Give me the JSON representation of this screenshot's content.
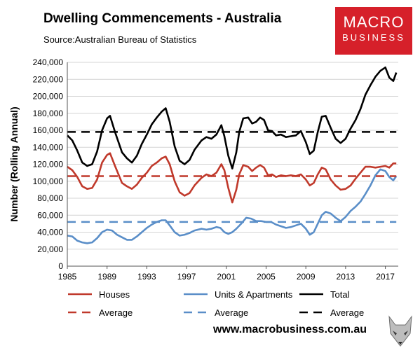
{
  "header": {
    "title": "Dwelling Commencements - Australia",
    "source": "Source:Australian Bureau of Statistics"
  },
  "logo": {
    "line1": "MACRO",
    "line2": "BUSINESS",
    "color": "#d6202a"
  },
  "footer": {
    "url": "www.macrobusiness.com.au"
  },
  "chart_data": {
    "type": "line",
    "title": "Dwelling Commencements - Australia",
    "xlabel": "",
    "ylabel": "Number (Rolling Annual)",
    "xlim": [
      1985,
      2018.3
    ],
    "ylim": [
      0,
      240000
    ],
    "x_ticks": [
      "1985",
      "1989",
      "1993",
      "1997",
      "2001",
      "2005",
      "2009",
      "2013",
      "2017"
    ],
    "y_ticks": [
      "0",
      "20,000",
      "40,000",
      "60,000",
      "80,000",
      "100,000",
      "120,000",
      "140,000",
      "160,000",
      "180,000",
      "200,000",
      "220,000",
      "240,000"
    ],
    "grid": "horizontal",
    "legend_placement": "bottom",
    "series": [
      {
        "name": "Houses",
        "color": "#c0392b",
        "style": "solid",
        "points": [
          [
            1985.0,
            117000
          ],
          [
            1985.5,
            113000
          ],
          [
            1986.0,
            105000
          ],
          [
            1986.5,
            94000
          ],
          [
            1987.0,
            91000
          ],
          [
            1987.5,
            92000
          ],
          [
            1988.0,
            102000
          ],
          [
            1988.5,
            122000
          ],
          [
            1989.0,
            131000
          ],
          [
            1989.3,
            133000
          ],
          [
            1989.8,
            118000
          ],
          [
            1990.5,
            98000
          ],
          [
            1991.0,
            94000
          ],
          [
            1991.5,
            91000
          ],
          [
            1992.0,
            96000
          ],
          [
            1992.5,
            104000
          ],
          [
            1993.0,
            110000
          ],
          [
            1993.5,
            118000
          ],
          [
            1994.0,
            122000
          ],
          [
            1994.5,
            127000
          ],
          [
            1994.9,
            129000
          ],
          [
            1995.3,
            120000
          ],
          [
            1995.8,
            100000
          ],
          [
            1996.3,
            87000
          ],
          [
            1996.8,
            83000
          ],
          [
            1997.3,
            86000
          ],
          [
            1997.8,
            95000
          ],
          [
            1998.5,
            104000
          ],
          [
            1999.0,
            108000
          ],
          [
            1999.5,
            106000
          ],
          [
            2000.0,
            110000
          ],
          [
            2000.5,
            120000
          ],
          [
            2000.8,
            113000
          ],
          [
            2001.2,
            92000
          ],
          [
            2001.6,
            75000
          ],
          [
            2002.0,
            90000
          ],
          [
            2002.3,
            108000
          ],
          [
            2002.7,
            119000
          ],
          [
            2003.2,
            117000
          ],
          [
            2003.6,
            112000
          ],
          [
            2004.0,
            116000
          ],
          [
            2004.4,
            119000
          ],
          [
            2004.8,
            116000
          ],
          [
            2005.2,
            107000
          ],
          [
            2005.6,
            108000
          ],
          [
            2006.0,
            105000
          ],
          [
            2006.5,
            107000
          ],
          [
            2007.0,
            106000
          ],
          [
            2007.5,
            107000
          ],
          [
            2008.0,
            106000
          ],
          [
            2008.5,
            108000
          ],
          [
            2009.0,
            102000
          ],
          [
            2009.4,
            95000
          ],
          [
            2009.8,
            98000
          ],
          [
            2010.2,
            108000
          ],
          [
            2010.6,
            116000
          ],
          [
            2011.0,
            114000
          ],
          [
            2011.5,
            102000
          ],
          [
            2012.0,
            95000
          ],
          [
            2012.5,
            90000
          ],
          [
            2013.0,
            91000
          ],
          [
            2013.5,
            95000
          ],
          [
            2014.0,
            103000
          ],
          [
            2014.5,
            110000
          ],
          [
            2015.0,
            117000
          ],
          [
            2015.5,
            117000
          ],
          [
            2016.0,
            116000
          ],
          [
            2016.5,
            117000
          ],
          [
            2017.0,
            118000
          ],
          [
            2017.4,
            116000
          ],
          [
            2017.8,
            121000
          ],
          [
            2018.1,
            121000
          ]
        ]
      },
      {
        "name": "Units & Apartments",
        "color": "#5a8ec8",
        "style": "solid",
        "points": [
          [
            1985.0,
            36000
          ],
          [
            1985.5,
            35000
          ],
          [
            1986.0,
            30000
          ],
          [
            1986.5,
            28000
          ],
          [
            1987.0,
            27000
          ],
          [
            1987.5,
            28000
          ],
          [
            1988.0,
            33000
          ],
          [
            1988.5,
            40000
          ],
          [
            1989.0,
            43000
          ],
          [
            1989.5,
            42000
          ],
          [
            1990.0,
            37000
          ],
          [
            1990.5,
            34000
          ],
          [
            1991.0,
            31000
          ],
          [
            1991.5,
            31000
          ],
          [
            1992.0,
            35000
          ],
          [
            1992.5,
            40000
          ],
          [
            1993.0,
            45000
          ],
          [
            1993.5,
            49000
          ],
          [
            1994.0,
            52000
          ],
          [
            1994.5,
            54000
          ],
          [
            1994.9,
            54000
          ],
          [
            1995.3,
            48000
          ],
          [
            1995.8,
            40000
          ],
          [
            1996.3,
            36000
          ],
          [
            1996.8,
            37000
          ],
          [
            1997.3,
            39000
          ],
          [
            1997.8,
            42000
          ],
          [
            1998.5,
            44000
          ],
          [
            1999.0,
            43000
          ],
          [
            1999.5,
            44000
          ],
          [
            2000.0,
            46000
          ],
          [
            2000.4,
            45000
          ],
          [
            2000.8,
            40000
          ],
          [
            2001.2,
            38000
          ],
          [
            2001.6,
            40000
          ],
          [
            2002.0,
            44000
          ],
          [
            2002.5,
            50000
          ],
          [
            2003.0,
            57000
          ],
          [
            2003.5,
            56000
          ],
          [
            2004.0,
            53000
          ],
          [
            2004.5,
            53000
          ],
          [
            2005.0,
            52000
          ],
          [
            2005.5,
            52000
          ],
          [
            2006.0,
            49000
          ],
          [
            2006.5,
            47000
          ],
          [
            2007.0,
            45000
          ],
          [
            2007.5,
            46000
          ],
          [
            2008.0,
            48000
          ],
          [
            2008.5,
            50000
          ],
          [
            2009.0,
            44000
          ],
          [
            2009.4,
            37000
          ],
          [
            2009.8,
            40000
          ],
          [
            2010.2,
            50000
          ],
          [
            2010.6,
            60000
          ],
          [
            2011.0,
            64000
          ],
          [
            2011.5,
            62000
          ],
          [
            2012.0,
            57000
          ],
          [
            2012.5,
            53000
          ],
          [
            2013.0,
            58000
          ],
          [
            2013.5,
            65000
          ],
          [
            2014.0,
            70000
          ],
          [
            2014.5,
            76000
          ],
          [
            2015.0,
            85000
          ],
          [
            2015.5,
            95000
          ],
          [
            2016.0,
            107000
          ],
          [
            2016.5,
            114000
          ],
          [
            2017.0,
            112000
          ],
          [
            2017.4,
            105000
          ],
          [
            2017.8,
            101000
          ],
          [
            2018.1,
            106000
          ]
        ]
      },
      {
        "name": "Total",
        "color": "#000000",
        "style": "solid",
        "points": [
          [
            1985.0,
            154000
          ],
          [
            1985.5,
            148000
          ],
          [
            1986.0,
            136000
          ],
          [
            1986.5,
            122000
          ],
          [
            1987.0,
            118000
          ],
          [
            1987.5,
            120000
          ],
          [
            1988.0,
            135000
          ],
          [
            1988.5,
            160000
          ],
          [
            1989.0,
            174000
          ],
          [
            1989.3,
            177000
          ],
          [
            1989.8,
            158000
          ],
          [
            1990.5,
            134000
          ],
          [
            1991.0,
            127000
          ],
          [
            1991.5,
            122000
          ],
          [
            1992.0,
            130000
          ],
          [
            1992.5,
            144000
          ],
          [
            1993.0,
            155000
          ],
          [
            1993.5,
            167000
          ],
          [
            1994.0,
            175000
          ],
          [
            1994.5,
            182000
          ],
          [
            1994.9,
            186000
          ],
          [
            1995.3,
            170000
          ],
          [
            1995.8,
            141000
          ],
          [
            1996.3,
            124000
          ],
          [
            1996.8,
            120000
          ],
          [
            1997.3,
            125000
          ],
          [
            1997.8,
            137000
          ],
          [
            1998.5,
            148000
          ],
          [
            1999.0,
            152000
          ],
          [
            1999.5,
            150000
          ],
          [
            2000.0,
            155000
          ],
          [
            2000.5,
            166000
          ],
          [
            2000.8,
            153000
          ],
          [
            2001.2,
            130000
          ],
          [
            2001.6,
            115000
          ],
          [
            2002.0,
            134000
          ],
          [
            2002.3,
            158000
          ],
          [
            2002.7,
            174000
          ],
          [
            2003.2,
            175000
          ],
          [
            2003.6,
            168000
          ],
          [
            2004.0,
            170000
          ],
          [
            2004.4,
            175000
          ],
          [
            2004.8,
            172000
          ],
          [
            2005.2,
            160000
          ],
          [
            2005.6,
            159000
          ],
          [
            2006.0,
            154000
          ],
          [
            2006.5,
            155000
          ],
          [
            2007.0,
            152000
          ],
          [
            2007.5,
            153000
          ],
          [
            2008.0,
            154000
          ],
          [
            2008.5,
            159000
          ],
          [
            2009.0,
            146000
          ],
          [
            2009.4,
            132000
          ],
          [
            2009.8,
            136000
          ],
          [
            2010.2,
            158000
          ],
          [
            2010.6,
            176000
          ],
          [
            2011.0,
            177000
          ],
          [
            2011.5,
            163000
          ],
          [
            2012.0,
            150000
          ],
          [
            2012.5,
            145000
          ],
          [
            2013.0,
            150000
          ],
          [
            2013.5,
            162000
          ],
          [
            2014.0,
            172000
          ],
          [
            2014.5,
            185000
          ],
          [
            2015.0,
            202000
          ],
          [
            2015.5,
            213000
          ],
          [
            2016.0,
            223000
          ],
          [
            2016.5,
            230000
          ],
          [
            2017.0,
            234000
          ],
          [
            2017.4,
            222000
          ],
          [
            2017.8,
            218000
          ],
          [
            2018.1,
            228000
          ]
        ]
      },
      {
        "name": "Average",
        "color": "#c0392b",
        "style": "dashed",
        "points": [
          [
            1985.0,
            106000
          ],
          [
            2018.1,
            106000
          ]
        ]
      },
      {
        "name": "Average",
        "color": "#5a8ec8",
        "style": "dashed",
        "points": [
          [
            1985.0,
            52000
          ],
          [
            2018.1,
            52000
          ]
        ]
      },
      {
        "name": "Average",
        "color": "#000000",
        "style": "dashed",
        "points": [
          [
            1985.0,
            158000
          ],
          [
            2018.1,
            158000
          ]
        ]
      }
    ]
  }
}
